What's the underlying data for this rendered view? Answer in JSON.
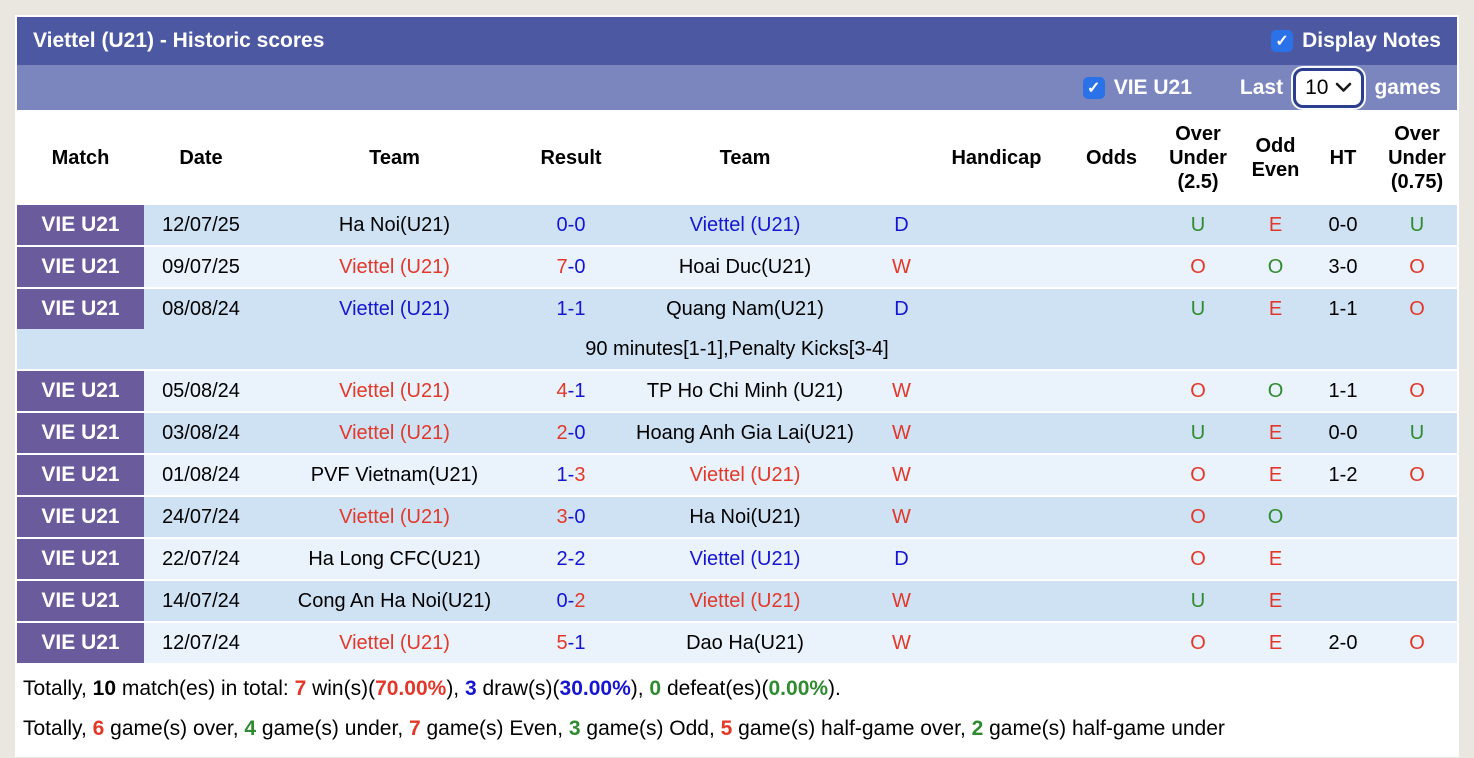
{
  "header": {
    "title": "Viettel (U21) - Historic scores",
    "display_notes_label": "Display Notes"
  },
  "subheader": {
    "team_label": "VIE U21",
    "last_label": "Last",
    "games_count": "10",
    "games_label": "games"
  },
  "table": {
    "header": {
      "match": "Match",
      "date": "Date",
      "team1": "Team",
      "result": "Result",
      "team2": "Team",
      "handicap": "Handicap",
      "odds": "Odds",
      "ou25": "Over Under (2.5)",
      "odd_even": "Odd Even",
      "ht": "HT",
      "ou075": "Over Under (0.75)"
    }
  },
  "rows": [
    {
      "match": "VIE U21",
      "date": "12/07/25",
      "team1": {
        "name": "Ha Noi(U21)",
        "color": "black"
      },
      "result": {
        "home": "0",
        "away": "0",
        "home_color": "blue",
        "away_color": "blue"
      },
      "team2": {
        "name": "Viettel (U21)",
        "color": "blue"
      },
      "outcome": {
        "text": "D",
        "color": "blue"
      },
      "handicap": "",
      "odds": "",
      "ou25": {
        "text": "U",
        "color": "green"
      },
      "odd_even": {
        "text": "E",
        "color": "red"
      },
      "ht": "0-0",
      "ou075": {
        "text": "U",
        "color": "green"
      },
      "shade": "dark",
      "note": null
    },
    {
      "match": "VIE U21",
      "date": "09/07/25",
      "team1": {
        "name": "Viettel (U21)",
        "color": "red"
      },
      "result": {
        "home": "7",
        "away": "0",
        "home_color": "red",
        "away_color": "blue"
      },
      "team2": {
        "name": "Hoai Duc(U21)",
        "color": "black"
      },
      "outcome": {
        "text": "W",
        "color": "red"
      },
      "handicap": "",
      "odds": "",
      "ou25": {
        "text": "O",
        "color": "red"
      },
      "odd_even": {
        "text": "O",
        "color": "green"
      },
      "ht": "3-0",
      "ou075": {
        "text": "O",
        "color": "red"
      },
      "shade": "light",
      "note": null
    },
    {
      "match": "VIE U21",
      "date": "08/08/24",
      "team1": {
        "name": "Viettel (U21)",
        "color": "blue"
      },
      "result": {
        "home": "1",
        "away": "1",
        "home_color": "blue",
        "away_color": "blue"
      },
      "team2": {
        "name": "Quang Nam(U21)",
        "color": "black"
      },
      "outcome": {
        "text": "D",
        "color": "blue"
      },
      "handicap": "",
      "odds": "",
      "ou25": {
        "text": "U",
        "color": "green"
      },
      "odd_even": {
        "text": "E",
        "color": "red"
      },
      "ht": "1-1",
      "ou075": {
        "text": "O",
        "color": "red"
      },
      "shade": "dark",
      "note": "90 minutes[1-1],Penalty Kicks[3-4]"
    },
    {
      "match": "VIE U21",
      "date": "05/08/24",
      "team1": {
        "name": "Viettel (U21)",
        "color": "red"
      },
      "result": {
        "home": "4",
        "away": "1",
        "home_color": "red",
        "away_color": "blue"
      },
      "team2": {
        "name": "TP Ho Chi Minh (U21)",
        "color": "black"
      },
      "outcome": {
        "text": "W",
        "color": "red"
      },
      "handicap": "",
      "odds": "",
      "ou25": {
        "text": "O",
        "color": "red"
      },
      "odd_even": {
        "text": "O",
        "color": "green"
      },
      "ht": "1-1",
      "ou075": {
        "text": "O",
        "color": "red"
      },
      "shade": "light",
      "note": null
    },
    {
      "match": "VIE U21",
      "date": "03/08/24",
      "team1": {
        "name": "Viettel (U21)",
        "color": "red"
      },
      "result": {
        "home": "2",
        "away": "0",
        "home_color": "red",
        "away_color": "blue"
      },
      "team2": {
        "name": "Hoang Anh Gia Lai(U21)",
        "color": "black"
      },
      "outcome": {
        "text": "W",
        "color": "red"
      },
      "handicap": "",
      "odds": "",
      "ou25": {
        "text": "U",
        "color": "green"
      },
      "odd_even": {
        "text": "E",
        "color": "red"
      },
      "ht": "0-0",
      "ou075": {
        "text": "U",
        "color": "green"
      },
      "shade": "dark",
      "note": null
    },
    {
      "match": "VIE U21",
      "date": "01/08/24",
      "team1": {
        "name": "PVF Vietnam(U21)",
        "color": "black"
      },
      "result": {
        "home": "1",
        "away": "3",
        "home_color": "blue",
        "away_color": "red"
      },
      "team2": {
        "name": "Viettel (U21)",
        "color": "red"
      },
      "outcome": {
        "text": "W",
        "color": "red"
      },
      "handicap": "",
      "odds": "",
      "ou25": {
        "text": "O",
        "color": "red"
      },
      "odd_even": {
        "text": "E",
        "color": "red"
      },
      "ht": "1-2",
      "ou075": {
        "text": "O",
        "color": "red"
      },
      "shade": "light",
      "note": null
    },
    {
      "match": "VIE U21",
      "date": "24/07/24",
      "team1": {
        "name": "Viettel (U21)",
        "color": "red"
      },
      "result": {
        "home": "3",
        "away": "0",
        "home_color": "red",
        "away_color": "blue"
      },
      "team2": {
        "name": "Ha Noi(U21)",
        "color": "black"
      },
      "outcome": {
        "text": "W",
        "color": "red"
      },
      "handicap": "",
      "odds": "",
      "ou25": {
        "text": "O",
        "color": "red"
      },
      "odd_even": {
        "text": "O",
        "color": "green"
      },
      "ht": "",
      "ou075": {
        "text": "",
        "color": "black"
      },
      "shade": "dark",
      "note": null
    },
    {
      "match": "VIE U21",
      "date": "22/07/24",
      "team1": {
        "name": "Ha Long CFC(U21)",
        "color": "black"
      },
      "result": {
        "home": "2",
        "away": "2",
        "home_color": "blue",
        "away_color": "blue"
      },
      "team2": {
        "name": "Viettel (U21)",
        "color": "blue"
      },
      "outcome": {
        "text": "D",
        "color": "blue"
      },
      "handicap": "",
      "odds": "",
      "ou25": {
        "text": "O",
        "color": "red"
      },
      "odd_even": {
        "text": "E",
        "color": "red"
      },
      "ht": "",
      "ou075": {
        "text": "",
        "color": "black"
      },
      "shade": "light",
      "note": null
    },
    {
      "match": "VIE U21",
      "date": "14/07/24",
      "team1": {
        "name": "Cong An Ha Noi(U21)",
        "color": "black"
      },
      "result": {
        "home": "0",
        "away": "2",
        "home_color": "blue",
        "away_color": "red"
      },
      "team2": {
        "name": "Viettel (U21)",
        "color": "red"
      },
      "outcome": {
        "text": "W",
        "color": "red"
      },
      "handicap": "",
      "odds": "",
      "ou25": {
        "text": "U",
        "color": "green"
      },
      "odd_even": {
        "text": "E",
        "color": "red"
      },
      "ht": "",
      "ou075": {
        "text": "",
        "color": "black"
      },
      "shade": "dark",
      "note": null
    },
    {
      "match": "VIE U21",
      "date": "12/07/24",
      "team1": {
        "name": "Viettel (U21)",
        "color": "red"
      },
      "result": {
        "home": "5",
        "away": "1",
        "home_color": "red",
        "away_color": "blue"
      },
      "team2": {
        "name": "Dao Ha(U21)",
        "color": "black"
      },
      "outcome": {
        "text": "W",
        "color": "red"
      },
      "handicap": "",
      "odds": "",
      "ou25": {
        "text": "O",
        "color": "red"
      },
      "odd_even": {
        "text": "E",
        "color": "red"
      },
      "ht": "2-0",
      "ou075": {
        "text": "O",
        "color": "red"
      },
      "shade": "light",
      "note": null
    }
  ],
  "footer": {
    "line1": [
      {
        "t": "Totally, ",
        "c": "black",
        "b": false
      },
      {
        "t": "10",
        "c": "black",
        "b": true
      },
      {
        "t": " match(es) in total: ",
        "c": "black",
        "b": false
      },
      {
        "t": "7",
        "c": "red",
        "b": true
      },
      {
        "t": " win(s)(",
        "c": "black",
        "b": false
      },
      {
        "t": "70.00%",
        "c": "red",
        "b": true
      },
      {
        "t": "), ",
        "c": "black",
        "b": false
      },
      {
        "t": "3",
        "c": "blue",
        "b": true
      },
      {
        "t": " draw(s)(",
        "c": "black",
        "b": false
      },
      {
        "t": "30.00%",
        "c": "blue",
        "b": true
      },
      {
        "t": "), ",
        "c": "black",
        "b": false
      },
      {
        "t": "0",
        "c": "green",
        "b": true
      },
      {
        "t": " defeat(es)(",
        "c": "black",
        "b": false
      },
      {
        "t": "0.00%",
        "c": "green",
        "b": true
      },
      {
        "t": ").",
        "c": "black",
        "b": false
      }
    ],
    "line2": [
      {
        "t": "Totally, ",
        "c": "black",
        "b": false
      },
      {
        "t": "6",
        "c": "red",
        "b": true
      },
      {
        "t": " game(s) over, ",
        "c": "black",
        "b": false
      },
      {
        "t": "4",
        "c": "green",
        "b": true
      },
      {
        "t": " game(s) under, ",
        "c": "black",
        "b": false
      },
      {
        "t": "7",
        "c": "red",
        "b": true
      },
      {
        "t": " game(s) Even, ",
        "c": "black",
        "b": false
      },
      {
        "t": "3",
        "c": "green",
        "b": true
      },
      {
        "t": " game(s) Odd, ",
        "c": "black",
        "b": false
      },
      {
        "t": "5",
        "c": "red",
        "b": true
      },
      {
        "t": " game(s) half-game over, ",
        "c": "black",
        "b": false
      },
      {
        "t": "2",
        "c": "green",
        "b": true
      },
      {
        "t": " game(s) half-game under",
        "c": "black",
        "b": false
      }
    ]
  },
  "icons": {
    "checkbox_check": "✓",
    "chevron_down": "chevron-down"
  },
  "colors": {
    "title_bar": "#4c58a1",
    "filter_bar": "#7b86bf",
    "match_badge": "#6a5b9d",
    "row_dark": "#cfe2f3",
    "row_light": "#eaf2fb",
    "checkbox_blue": "#2b72e8",
    "text_red": "#e2382a",
    "text_blue": "#1515d2",
    "text_green": "#2f8b2f"
  }
}
